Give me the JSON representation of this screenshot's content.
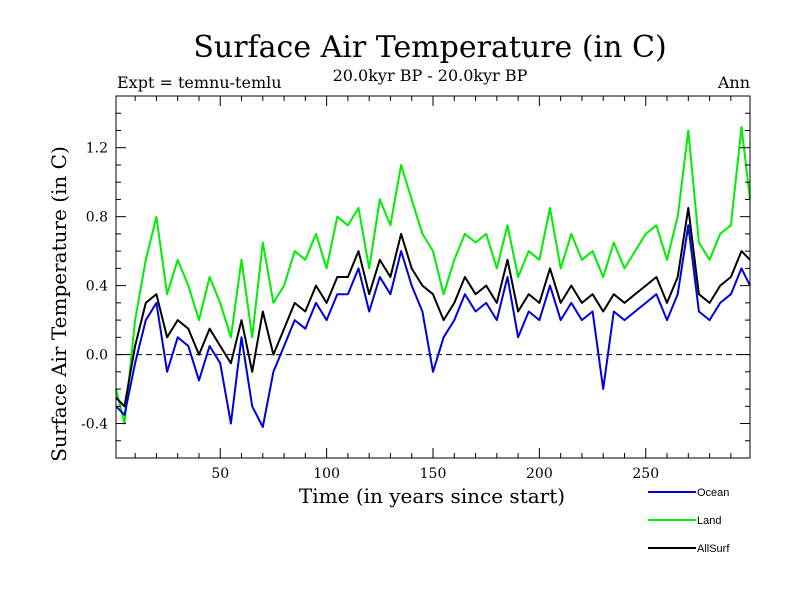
{
  "chart_data": {
    "type": "line",
    "title": "Surface Air Temperature (in C)",
    "subtitle": "20.0kyr BP - 20.0kyr BP",
    "left_label": "Expt = temnu-temlu",
    "right_label": "Ann",
    "xlabel": "Time (in years since start)",
    "ylabel": "Surface Air Temperature (in C)",
    "xlim": [
      1,
      299
    ],
    "ylim": [
      -0.6,
      1.5
    ],
    "xticks": [
      50,
      100,
      150,
      200,
      250
    ],
    "xtick_labels": [
      "50",
      "100",
      "150",
      "200",
      "250"
    ],
    "yticks": [
      -0.4,
      0.0,
      0.4,
      0.8,
      1.2
    ],
    "ytick_labels": [
      "-0.4",
      "0.0",
      "0.4",
      "0.8",
      "1.2"
    ],
    "reference_line": 0.0,
    "legend_position": "bottom-right",
    "series": [
      {
        "name": "Land",
        "color": "#00ee00",
        "x": [
          1,
          5,
          10,
          15,
          20,
          25,
          30,
          35,
          40,
          45,
          50,
          55,
          60,
          65,
          70,
          75,
          80,
          85,
          90,
          95,
          100,
          105,
          110,
          115,
          120,
          125,
          130,
          135,
          140,
          145,
          150,
          155,
          160,
          165,
          170,
          175,
          180,
          185,
          190,
          195,
          200,
          205,
          210,
          215,
          220,
          225,
          230,
          235,
          240,
          245,
          250,
          255,
          260,
          265,
          270,
          275,
          280,
          285,
          290,
          295,
          299
        ],
        "values": [
          -0.2,
          -0.4,
          0.2,
          0.55,
          0.8,
          0.35,
          0.55,
          0.4,
          0.2,
          0.45,
          0.3,
          0.1,
          0.55,
          0.1,
          0.65,
          0.3,
          0.4,
          0.6,
          0.55,
          0.7,
          0.5,
          0.8,
          0.75,
          0.85,
          0.5,
          0.9,
          0.75,
          1.1,
          0.9,
          0.7,
          0.6,
          0.35,
          0.55,
          0.7,
          0.65,
          0.7,
          0.5,
          0.75,
          0.45,
          0.6,
          0.55,
          0.85,
          0.5,
          0.7,
          0.55,
          0.6,
          0.45,
          0.65,
          0.5,
          0.6,
          0.7,
          0.75,
          0.55,
          0.8,
          1.3,
          0.65,
          0.55,
          0.7,
          0.75,
          1.32,
          0.9
        ]
      },
      {
        "name": "AllSurf",
        "color": "#000000",
        "x": [
          1,
          5,
          10,
          15,
          20,
          25,
          30,
          35,
          40,
          45,
          50,
          55,
          60,
          65,
          70,
          75,
          80,
          85,
          90,
          95,
          100,
          105,
          110,
          115,
          120,
          125,
          130,
          135,
          140,
          145,
          150,
          155,
          160,
          165,
          170,
          175,
          180,
          185,
          190,
          195,
          200,
          205,
          210,
          215,
          220,
          225,
          230,
          235,
          240,
          245,
          250,
          255,
          260,
          265,
          270,
          275,
          280,
          285,
          290,
          295,
          299
        ],
        "values": [
          -0.25,
          -0.3,
          0.05,
          0.3,
          0.35,
          0.1,
          0.2,
          0.15,
          0.0,
          0.15,
          0.05,
          -0.05,
          0.2,
          -0.1,
          0.25,
          0.0,
          0.15,
          0.3,
          0.25,
          0.4,
          0.3,
          0.45,
          0.45,
          0.6,
          0.35,
          0.55,
          0.45,
          0.7,
          0.5,
          0.4,
          0.35,
          0.2,
          0.3,
          0.45,
          0.35,
          0.4,
          0.3,
          0.55,
          0.25,
          0.35,
          0.3,
          0.5,
          0.3,
          0.4,
          0.3,
          0.35,
          0.25,
          0.35,
          0.3,
          0.35,
          0.4,
          0.45,
          0.3,
          0.45,
          0.85,
          0.35,
          0.3,
          0.4,
          0.45,
          0.6,
          0.55
        ]
      },
      {
        "name": "Ocean",
        "color": "#0000dd",
        "x": [
          1,
          5,
          10,
          15,
          20,
          25,
          30,
          35,
          40,
          45,
          50,
          55,
          60,
          65,
          70,
          75,
          80,
          85,
          90,
          95,
          100,
          105,
          110,
          115,
          120,
          125,
          130,
          135,
          140,
          145,
          150,
          155,
          160,
          165,
          170,
          175,
          180,
          185,
          190,
          195,
          200,
          205,
          210,
          215,
          220,
          225,
          230,
          235,
          240,
          245,
          250,
          255,
          260,
          265,
          270,
          275,
          280,
          285,
          290,
          295,
          299
        ],
        "values": [
          -0.3,
          -0.35,
          -0.05,
          0.2,
          0.3,
          -0.1,
          0.1,
          0.05,
          -0.15,
          0.05,
          -0.05,
          -0.4,
          0.1,
          -0.3,
          -0.42,
          -0.1,
          0.05,
          0.2,
          0.15,
          0.3,
          0.2,
          0.35,
          0.35,
          0.5,
          0.25,
          0.45,
          0.35,
          0.6,
          0.4,
          0.25,
          -0.1,
          0.1,
          0.2,
          0.35,
          0.25,
          0.3,
          0.2,
          0.45,
          0.1,
          0.25,
          0.2,
          0.4,
          0.2,
          0.3,
          0.2,
          0.25,
          -0.2,
          0.25,
          0.2,
          0.25,
          0.3,
          0.35,
          0.2,
          0.35,
          0.75,
          0.25,
          0.2,
          0.3,
          0.35,
          0.5,
          0.4
        ]
      }
    ],
    "legend": [
      {
        "name": "Ocean",
        "color": "#0000dd"
      },
      {
        "name": "Land",
        "color": "#00ee00"
      },
      {
        "name": "AllSurf",
        "color": "#000000"
      }
    ]
  }
}
